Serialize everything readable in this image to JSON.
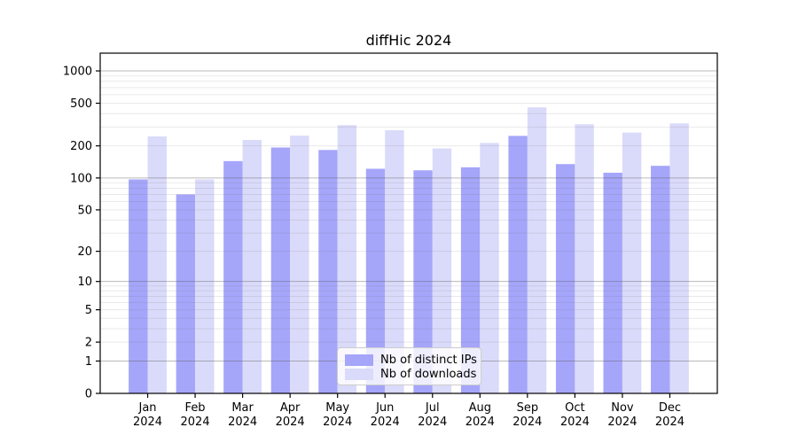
{
  "chart_data": {
    "type": "bar",
    "title": "diffHic 2024",
    "categories": [
      "Jan",
      "Feb",
      "Mar",
      "Apr",
      "May",
      "Jun",
      "Jul",
      "Aug",
      "Sep",
      "Oct",
      "Nov",
      "Dec"
    ],
    "category_year": "2024",
    "series": [
      {
        "name": "Nb of distinct IPs",
        "color": "#a5a5fa",
        "values": [
          97,
          70,
          144,
          193,
          183,
          122,
          118,
          126,
          248,
          135,
          112,
          130
        ]
      },
      {
        "name": "Nb of downloads",
        "color": "#dadafa",
        "values": [
          245,
          97,
          227,
          249,
          312,
          280,
          189,
          213,
          457,
          318,
          266,
          324
        ]
      }
    ],
    "xlabel": "",
    "ylabel": "",
    "y_scale": "log1p",
    "y_ticks": [
      0,
      1,
      2,
      5,
      10,
      20,
      50,
      100,
      200,
      500,
      1000
    ],
    "ylim": [
      0,
      1465
    ],
    "grid": "horizontal, major at powers of ten plus faint log minors",
    "legend_position": "inside bottom-center"
  }
}
